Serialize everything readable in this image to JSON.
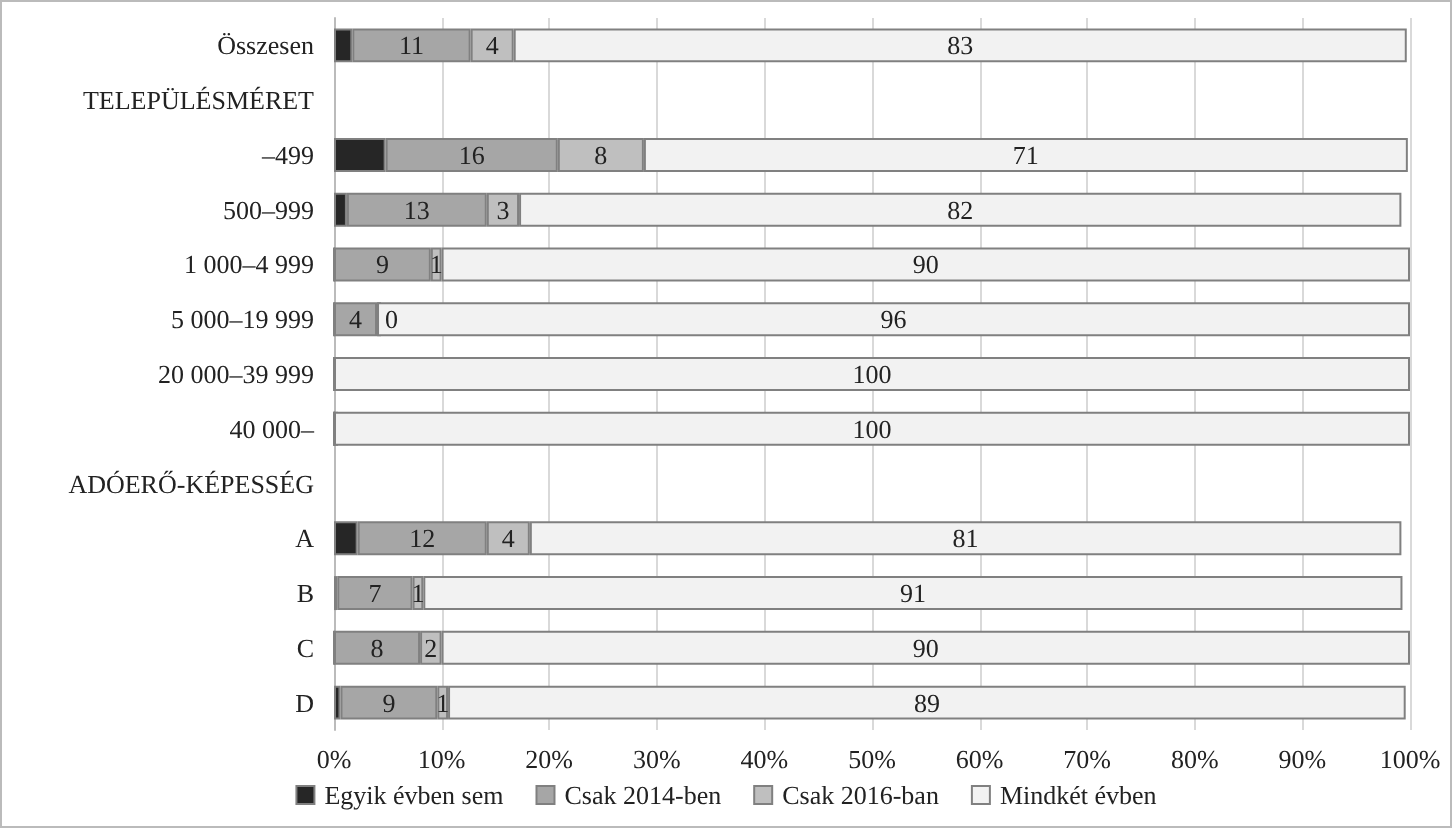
{
  "chart_data": {
    "type": "bar",
    "orientation": "horizontal",
    "stacked": true,
    "categories": [
      "Összesen",
      "TELEPÜLÉSMÉRET",
      "–499",
      "500–999",
      "1 000–4 999",
      "5 000–19 999",
      "20 000–39 999",
      "40 000–",
      "ADÓERŐ-KÉPESSÉG",
      "A",
      "B",
      "C",
      "D"
    ],
    "series": [
      {
        "name": "Egyik évben sem",
        "color": "#262626",
        "values": [
          1.7,
          null,
          4.8,
          1.2,
          0,
          0,
          0,
          0,
          null,
          2.2,
          0.3,
          0,
          0.6
        ]
      },
      {
        "name": "Csak 2014-ben",
        "color": "#a6a6a6",
        "values": [
          11,
          null,
          16,
          13,
          9,
          4,
          0,
          0,
          null,
          12,
          7,
          8,
          9
        ],
        "value_labels": [
          "11",
          null,
          "16",
          "13",
          "9",
          "4",
          null,
          null,
          null,
          "12",
          "7",
          "8",
          "9"
        ]
      },
      {
        "name": "Csak 2016-ban",
        "color": "#bfbfbf",
        "values": [
          4,
          null,
          8,
          3,
          1,
          0,
          0,
          0,
          null,
          4,
          1,
          2,
          1
        ],
        "value_labels": [
          "4",
          null,
          "8",
          "3",
          "1",
          "0",
          null,
          null,
          null,
          "4",
          "1",
          "2",
          "1"
        ]
      },
      {
        "name": "Mindkét évben",
        "color": "#f2f2f2",
        "values": [
          83,
          null,
          71,
          82,
          90,
          96,
          100,
          100,
          null,
          81,
          91,
          90,
          89
        ],
        "value_labels": [
          "83",
          null,
          "71",
          "82",
          "90",
          "96",
          "100",
          "100",
          null,
          "81",
          "91",
          "90",
          "89"
        ]
      }
    ],
    "xlim": [
      0,
      100
    ],
    "xticks": [
      {
        "value": 0,
        "label": "0%"
      },
      {
        "value": 10,
        "label": "10%"
      },
      {
        "value": 20,
        "label": "20%"
      },
      {
        "value": 30,
        "label": "30%"
      },
      {
        "value": 40,
        "label": "40%"
      },
      {
        "value": 50,
        "label": "50%"
      },
      {
        "value": 60,
        "label": "60%"
      },
      {
        "value": 70,
        "label": "70%"
      },
      {
        "value": 80,
        "label": "80%"
      },
      {
        "value": 90,
        "label": "90%"
      },
      {
        "value": 100,
        "label": "100%"
      }
    ],
    "grid": "x",
    "legend": "bottom"
  }
}
